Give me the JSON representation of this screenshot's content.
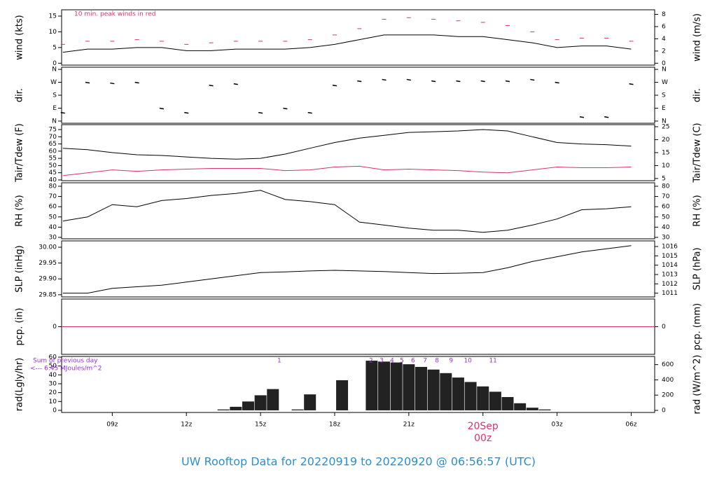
{
  "chart_data": [
    {
      "type": "line",
      "ylabel": "wind (kts)",
      "y2label": "wind (m/s)",
      "annotation": "10 min. peak winds in red",
      "annotation_color": "#d6336c",
      "ylim": [
        -0.6,
        17
      ],
      "yticks": [
        0,
        5,
        10,
        15
      ],
      "y2lim": [
        -0.31,
        8.75
      ],
      "y2ticks": [
        0,
        2,
        4,
        6,
        8
      ],
      "x": [
        7,
        8,
        9,
        10,
        11,
        12,
        13,
        14,
        15,
        16,
        17,
        18,
        19,
        20,
        21,
        22,
        23,
        24,
        25,
        26,
        27,
        28,
        29,
        30
      ],
      "series": [
        {
          "name": "wind",
          "color": "#000000",
          "style": "line",
          "values": [
            3.5,
            4.5,
            4.5,
            5,
            5,
            4,
            4,
            4.5,
            4.5,
            4.5,
            5,
            6,
            7.5,
            9,
            9,
            9,
            8.5,
            8.5,
            7.5,
            6.5,
            5,
            5.5,
            5.5,
            4.5
          ]
        },
        {
          "name": "peak",
          "color": "#d6336c",
          "style": "dash",
          "values": [
            6,
            7,
            7,
            7.5,
            7,
            6,
            6.5,
            7,
            7,
            7,
            7.5,
            9,
            11,
            14,
            14.5,
            14,
            13.5,
            13,
            12,
            10,
            7.5,
            8,
            8,
            7
          ]
        }
      ]
    },
    {
      "type": "scatter",
      "ylabel": "dir.",
      "y2label": "dir.",
      "ylim": [
        -15,
        375
      ],
      "yticks": [
        {
          "value": 0,
          "label": "N"
        },
        {
          "value": 90,
          "label": "E"
        },
        {
          "value": 180,
          "label": "S"
        },
        {
          "value": 270,
          "label": "W"
        },
        {
          "value": 360,
          "label": "N"
        }
      ],
      "y2lim": [
        -15,
        375
      ],
      "y2ticks": [
        {
          "value": 0,
          "label": "N"
        },
        {
          "value": 90,
          "label": "E"
        },
        {
          "value": 180,
          "label": "S"
        },
        {
          "value": 270,
          "label": "W"
        },
        {
          "value": 360,
          "label": "N"
        }
      ],
      "x": [
        7,
        8,
        9,
        10,
        11,
        12,
        13,
        14,
        15,
        16,
        17,
        18,
        19,
        20,
        21,
        22,
        23,
        24,
        25,
        26,
        27,
        28,
        29,
        30
      ],
      "series": [
        {
          "name": "direction",
          "color": "#000000",
          "values": [
            60,
            270,
            265,
            270,
            90,
            60,
            250,
            260,
            60,
            90,
            60,
            250,
            280,
            290,
            290,
            280,
            280,
            280,
            280,
            290,
            270,
            30,
            30,
            260
          ]
        }
      ]
    },
    {
      "type": "line",
      "ylabel": "Tair/Tdew (F)",
      "y2label": "Tair/Tdew (C)",
      "ylim": [
        39.5,
        78.4
      ],
      "yticks": [
        40,
        45,
        50,
        55,
        60,
        65,
        70,
        75
      ],
      "y2lim": [
        4.17,
        25.8
      ],
      "y2ticks": [
        5,
        10,
        15,
        20,
        25
      ],
      "x": [
        7,
        8,
        9,
        10,
        11,
        12,
        13,
        14,
        15,
        16,
        17,
        18,
        19,
        20,
        21,
        22,
        23,
        24,
        25,
        26,
        27,
        28,
        29,
        30
      ],
      "series": [
        {
          "name": "Tair",
          "color": "#000000",
          "style": "line",
          "values": [
            62,
            61,
            59,
            57.5,
            57,
            56,
            55,
            54.5,
            55,
            58,
            62,
            66,
            69,
            71,
            73,
            73.5,
            74,
            75,
            74,
            70,
            66,
            65,
            64.5,
            63.5
          ]
        },
        {
          "name": "Tdew",
          "color": "#d6336c",
          "style": "line",
          "values": [
            43,
            45,
            47,
            46,
            47,
            47.5,
            48,
            48,
            48,
            46.5,
            47,
            49,
            49.5,
            47,
            47.5,
            47,
            46.5,
            45.5,
            45,
            47,
            49,
            48.5,
            48.5,
            49
          ]
        }
      ]
    },
    {
      "type": "line",
      "ylabel": "RH (%)",
      "y2label": "RH (%)",
      "ylim": [
        28.6,
        83.4
      ],
      "yticks": [
        30,
        40,
        50,
        60,
        70,
        80
      ],
      "y2lim": [
        28.6,
        83.4
      ],
      "y2ticks": [
        30,
        40,
        50,
        60,
        70,
        80
      ],
      "x": [
        7,
        8,
        9,
        10,
        11,
        12,
        13,
        14,
        15,
        16,
        17,
        18,
        19,
        20,
        21,
        22,
        23,
        24,
        25,
        26,
        27,
        28,
        29,
        30
      ],
      "series": [
        {
          "name": "RH",
          "color": "#000000",
          "style": "line",
          "values": [
            46,
            50,
            62,
            60,
            66,
            68,
            71,
            73,
            76,
            67,
            65,
            62,
            45,
            42,
            39,
            37,
            37,
            35,
            37,
            42,
            48,
            57,
            58,
            60
          ]
        }
      ]
    },
    {
      "type": "line",
      "ylabel": "SLP (inHg)",
      "y2label": "SLP (hPa)",
      "ylim": [
        29.843,
        30.02
      ],
      "yticks": [
        {
          "value": 29.85,
          "label": "29.85"
        },
        {
          "value": 29.9,
          "label": "29.90"
        },
        29.95,
        {
          "value": 30,
          "label": "30.00"
        }
      ],
      "y2lim": [
        1010.6,
        1016.6
      ],
      "y2ticks": [
        1011,
        1012,
        1013,
        1014,
        1015,
        1016
      ],
      "x": [
        7,
        8,
        9,
        10,
        11,
        12,
        13,
        14,
        15,
        16,
        17,
        18,
        19,
        20,
        21,
        22,
        23,
        24,
        25,
        26,
        27,
        28,
        29,
        30
      ],
      "series": [
        {
          "name": "SLP",
          "color": "#000000",
          "style": "line",
          "values": [
            29.855,
            29.855,
            29.87,
            29.875,
            29.88,
            29.89,
            29.9,
            29.91,
            29.92,
            29.922,
            29.925,
            29.927,
            29.925,
            29.923,
            29.92,
            29.917,
            29.918,
            29.92,
            29.935,
            29.955,
            29.97,
            29.985,
            29.995,
            30.005
          ]
        }
      ]
    },
    {
      "type": "line",
      "ylabel": "pcp. (in)",
      "y2label": "pcp. (mm)",
      "ylim": [
        -0.1,
        0.1
      ],
      "yticks": [
        0
      ],
      "y2lim": [
        -2.54,
        2.54
      ],
      "y2ticks": [
        0
      ],
      "x": [
        6.95,
        30.95
      ],
      "series": [
        {
          "name": "pcp",
          "color": "#d6336c",
          "style": "line",
          "values": [
            0,
            0
          ]
        }
      ]
    },
    {
      "type": "bar",
      "ylabel": "rad(Lgly/hr)",
      "y2label": "rad (W/m^2)",
      "ylim": [
        -2.4,
        60.8
      ],
      "yticks": [
        0,
        10,
        20,
        30,
        40,
        50,
        60
      ],
      "y2lim": [
        -27.6,
        707
      ],
      "y2ticks": [
        0,
        200,
        400,
        600
      ],
      "xlim": [
        6.95,
        30.95
      ],
      "xticks": [
        {
          "value": 9,
          "label": "09z"
        },
        {
          "value": 12,
          "label": "12z"
        },
        {
          "value": 15,
          "label": "15z"
        },
        {
          "value": 18,
          "label": "18z"
        },
        {
          "value": 21,
          "label": "21z"
        },
        {
          "value": 24,
          "label": "00z"
        },
        {
          "value": 27,
          "label": "03z"
        },
        {
          "value": 30,
          "label": "06z"
        }
      ],
      "date_label": "20Sep",
      "annotations": [
        "Sum of previous day",
        "<--- 6.45 MJoules/m^2"
      ],
      "annotation_color": "#9b30d9",
      "hour_marks": [
        1,
        2,
        3,
        4,
        5,
        6,
        7,
        8,
        9,
        10,
        11
      ],
      "hour_marks_x": [
        15.76,
        19.47,
        19.9,
        20.32,
        20.72,
        21.17,
        21.66,
        22.14,
        22.71,
        23.39,
        24.41
      ],
      "x": [
        13.5,
        14,
        14.5,
        15,
        15.5,
        16.5,
        17,
        18.3,
        19.5,
        20,
        20.5,
        21,
        21.5,
        22,
        22.5,
        23,
        23.5,
        24,
        24.5,
        25,
        25.5,
        26,
        26.5
      ],
      "series": [
        {
          "name": "radiation",
          "color": "#222222",
          "values": [
            1,
            4,
            10,
            17,
            24,
            1,
            18,
            34,
            56,
            55,
            54,
            52,
            49,
            46,
            42,
            37,
            32,
            27,
            21,
            15,
            8,
            3,
            1
          ]
        }
      ]
    }
  ],
  "footer_title": "UW Rooftop Data for 20220919  to  20220920 @ 06:56:57  (UTC)"
}
